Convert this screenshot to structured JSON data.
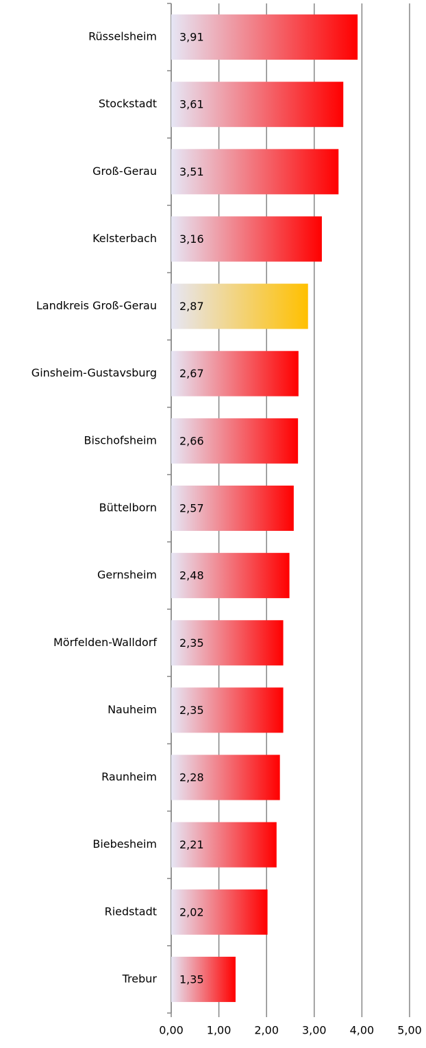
{
  "chart_data": {
    "type": "barh",
    "categories": [
      "Rüsselsheim",
      "Stockstadt",
      "Groß-Gerau",
      "Kelsterbach",
      "Landkreis Groß-Gerau",
      "Ginsheim-Gustavsburg",
      "Bischofsheim",
      "Büttelborn",
      "Gernsheim",
      "Mörfelden-Walldorf",
      "Nauheim",
      "Raunheim",
      "Biebesheim",
      "Riedstadt",
      "Trebur"
    ],
    "values": [
      3.91,
      3.61,
      3.51,
      3.16,
      2.87,
      2.67,
      2.66,
      2.57,
      2.48,
      2.35,
      2.35,
      2.28,
      2.21,
      2.02,
      1.35
    ],
    "value_labels": [
      "3,91",
      "3,61",
      "3,51",
      "3,16",
      "2,87",
      "2,67",
      "2,66",
      "2,57",
      "2,48",
      "2,35",
      "2,35",
      "2,28",
      "2,21",
      "2,02",
      "1,35"
    ],
    "colors": [
      "#ff0000",
      "#ff0000",
      "#ff0000",
      "#ff0000",
      "#ffc000",
      "#ff0000",
      "#ff0000",
      "#ff0000",
      "#ff0000",
      "#ff0000",
      "#ff0000",
      "#ff0000",
      "#ff0000",
      "#ff0000",
      "#ff0000"
    ],
    "gradient_start": "#e6e6f5",
    "xlim": [
      0,
      5
    ],
    "xticks": [
      {
        "value": 0,
        "label": "0,00"
      },
      {
        "value": 1,
        "label": "1,00"
      },
      {
        "value": 2,
        "label": "2,00"
      },
      {
        "value": 3,
        "label": "3,00"
      },
      {
        "value": 4,
        "label": "4,00"
      },
      {
        "value": 5,
        "label": "5,00"
      }
    ],
    "grid": true
  }
}
